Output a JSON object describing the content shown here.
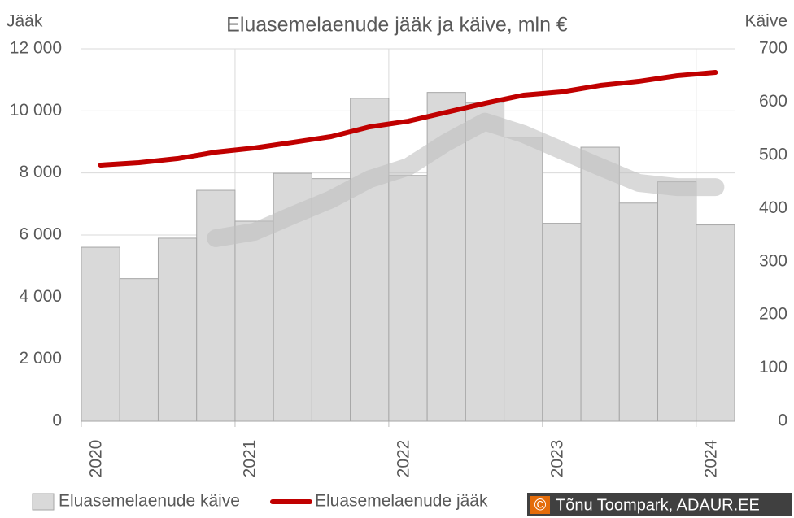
{
  "chart_data": {
    "type": "bar",
    "title": "Eluasemelaenude jääk ja käive, mln €",
    "y_label": "Jääk",
    "y2_label": "Käive",
    "categories": [
      "2020",
      null,
      null,
      null,
      "2021",
      null,
      null,
      null,
      "2022",
      null,
      null,
      null,
      "2023",
      null,
      null,
      null,
      "2024"
    ],
    "series": [
      {
        "name": "Eluasemelaenude käive",
        "type": "bar",
        "axis": "y2",
        "color": "#d9d9d9",
        "values": [
          327,
          268,
          344,
          434,
          376,
          466,
          456,
          607,
          462,
          618,
          599,
          534,
          372,
          515,
          410,
          450,
          369
        ]
      },
      {
        "type": "line",
        "axis": "y2",
        "color": "#bfbfbf",
        "values": [
          null,
          null,
          null,
          344,
          356,
          387,
          417,
          455,
          478,
          524,
          563,
          540,
          509,
          478,
          448,
          440,
          440
        ]
      },
      {
        "name": "Eluasemelaenude jääk",
        "type": "line",
        "axis": "y",
        "color": "#c00000",
        "values": [
          8253,
          8331,
          8462,
          8672,
          8803,
          8986,
          9170,
          9484,
          9667,
          9955,
          10244,
          10506,
          10611,
          10820,
          10951,
          11134,
          11239
        ]
      }
    ],
    "ylim": [
      0,
      12000
    ],
    "yticks": [
      0,
      {
        "value": 2000,
        "label": "2 000"
      },
      {
        "value": 4000,
        "label": "4 000"
      },
      {
        "value": 6000,
        "label": "6 000"
      },
      {
        "value": 8000,
        "label": "8 000"
      },
      {
        "value": 10000,
        "label": "10 000"
      },
      {
        "value": 12000,
        "label": "12 000"
      }
    ],
    "y2lim": [
      0,
      700
    ],
    "y2ticks": [
      0,
      100,
      200,
      300,
      400,
      500,
      600,
      700
    ],
    "grid": true,
    "legend": "bottom",
    "credit_symbol": "©",
    "credit": "Tõnu Toompark, ADAUR.EE"
  }
}
